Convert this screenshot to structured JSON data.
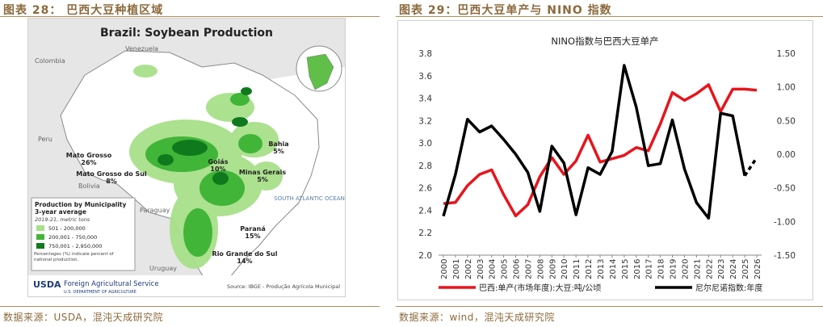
{
  "left": {
    "figure_title": "图表 28： 巴西大豆种植区域",
    "source": "数据来源：USDA，混沌天成研究院",
    "map": {
      "title": "Brazil: Soybean Production",
      "countries": [
        "Venezuela",
        "Colombia",
        "Peru",
        "Bolivia",
        "Paraguay",
        "Uruguay"
      ],
      "ocean": "SOUTH ATLANTIC OCEAN",
      "states": [
        {
          "name": "Mato Grosso",
          "pct": "26%"
        },
        {
          "name": "Mato Grosso do Sul",
          "pct": "8%"
        },
        {
          "name": "Goiás",
          "pct": "10%"
        },
        {
          "name": "Bahia",
          "pct": "5%"
        },
        {
          "name": "Minas Gerais",
          "pct": "5%"
        },
        {
          "name": "Paraná",
          "pct": "15%"
        },
        {
          "name": "Rio Grande do Sul",
          "pct": "14%"
        }
      ],
      "legend": {
        "title1": "Production by Municipality",
        "title2": "3-year average",
        "subtitle": "2019-21, metric tons",
        "items": [
          {
            "label": "501 - 200,000",
            "color": "#a8e08a"
          },
          {
            "label": "200,001 - 750,000",
            "color": "#41b538"
          },
          {
            "label": "750,001 - 2,950,000",
            "color": "#0f7a1d"
          }
        ],
        "note": "Percentages (%) indicate percent of national production."
      },
      "footer_org": "USDA",
      "footer_agency": "Foreign Agricultural Service",
      "footer_dept": "U.S. DEPARTMENT OF AGRICULTURE",
      "footer_source": "Source: IBGE - Produção Agrícola Municipal"
    }
  },
  "right": {
    "figure_title": "图表 29：巴西大豆单产与 NINO 指数",
    "source": "数据来源：wind，混沌天成研究院",
    "chart_data": {
      "type": "line",
      "title": "NINO指数与巴西大豆单产",
      "x": [
        "2000",
        "2001",
        "2002",
        "2003",
        "2004",
        "2005",
        "2006",
        "2007",
        "2008",
        "2009",
        "2010",
        "2011",
        "2012",
        "2013",
        "2014",
        "2015",
        "2016",
        "2017",
        "2018",
        "2019",
        "2020",
        "2021",
        "2022",
        "2023",
        "2024",
        "2025",
        "2026"
      ],
      "y_left": {
        "min": 2.0,
        "max": 3.8,
        "ticks": [
          "2.0",
          "2.2",
          "2.4",
          "2.6",
          "2.8",
          "3.0",
          "3.2",
          "3.4",
          "3.6",
          "3.8"
        ]
      },
      "y_right": {
        "min": -1.5,
        "max": 1.5,
        "ticks": [
          "-1.50",
          "-1.00",
          "-0.50",
          "0.00",
          "0.50",
          "1.00",
          "1.50"
        ]
      },
      "series": [
        {
          "name": "巴西:单产(市场年度):大豆:吨/公顷",
          "color": "#e8141c",
          "axis": "left",
          "values": [
            2.46,
            2.47,
            2.62,
            2.72,
            2.76,
            2.54,
            2.35,
            2.45,
            2.7,
            2.87,
            2.72,
            2.84,
            3.07,
            2.83,
            2.86,
            2.89,
            2.96,
            2.93,
            3.17,
            3.45,
            3.38,
            3.44,
            3.52,
            3.28,
            3.48,
            3.48,
            3.47
          ]
        },
        {
          "name": "尼尔尼诺指数:年度",
          "color": "#000000",
          "axis": "right",
          "values": [
            -0.92,
            -0.3,
            0.52,
            0.33,
            0.42,
            0.22,
            0.0,
            -0.27,
            -0.85,
            0.12,
            -0.13,
            -0.9,
            -0.2,
            -0.3,
            0.04,
            1.32,
            0.7,
            -0.17,
            -0.14,
            0.51,
            -0.22,
            -0.72,
            -0.95,
            0.61,
            0.57,
            -0.32,
            -0.05
          ]
        }
      ]
    }
  }
}
